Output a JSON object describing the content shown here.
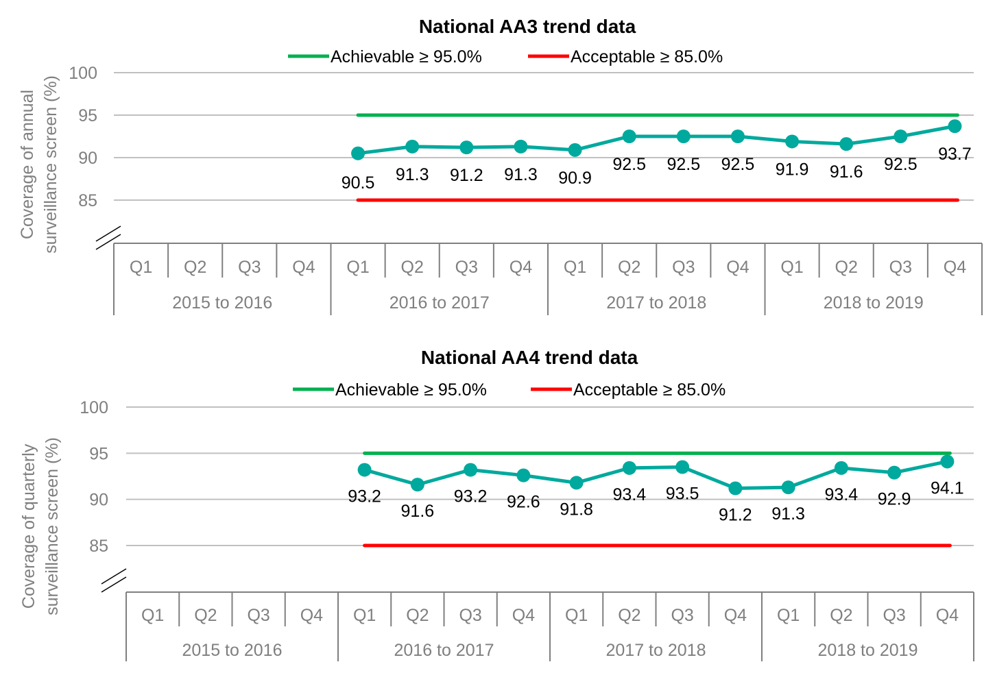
{
  "chart_data": [
    {
      "type": "line",
      "title": "National AA3 trend data",
      "ylabel": "Coverage of annual surveillance screen (%)",
      "ylabel_lines": [
        "Coverage of annual",
        "surveillance screen (%)"
      ],
      "ylim": [
        85,
        100
      ],
      "yticks": [
        "85",
        "90",
        "95",
        "100"
      ],
      "y_axis_break": true,
      "grid": true,
      "legend_position": "top",
      "quarters": [
        "Q1",
        "Q2",
        "Q3",
        "Q4",
        "Q1",
        "Q2",
        "Q3",
        "Q4",
        "Q1",
        "Q2",
        "Q3",
        "Q4",
        "Q1",
        "Q2",
        "Q3",
        "Q4"
      ],
      "years": [
        "2015 to 2016",
        "2016 to 2017",
        "2017 to 2018",
        "2018 to 2019"
      ],
      "series": [
        {
          "values": [
            null,
            null,
            null,
            null,
            90.5,
            91.3,
            91.2,
            91.3,
            90.9,
            92.5,
            92.5,
            92.5,
            91.9,
            91.6,
            92.5,
            93.7
          ],
          "data_labels": [
            "",
            "",
            "",
            "",
            "90.5",
            "91.3",
            "91.2",
            "91.3",
            "90.9",
            "92.5",
            "92.5",
            "92.5",
            "91.9",
            "91.6",
            "92.5",
            "93.7"
          ],
          "color": "#00A99D"
        }
      ],
      "thresholds": [
        {
          "name": "Acceptable ≥ 85.0%",
          "value": 85,
          "color": "#FF0000"
        },
        {
          "name": "Achievable ≥ 95.0%",
          "value": 95,
          "color": "#00B050"
        }
      ]
    },
    {
      "type": "line",
      "title": "National AA4 trend data",
      "ylabel": "Coverage of quarterly surveillance screen (%)",
      "ylabel_lines": [
        "Coverage of quarterly",
        "surveillance screen (%)"
      ],
      "ylim": [
        85,
        100
      ],
      "yticks": [
        "85",
        "90",
        "95",
        "100"
      ],
      "y_axis_break": true,
      "grid": true,
      "legend_position": "top",
      "quarters": [
        "Q1",
        "Q2",
        "Q3",
        "Q4",
        "Q1",
        "Q2",
        "Q3",
        "Q4",
        "Q1",
        "Q2",
        "Q3",
        "Q4",
        "Q1",
        "Q2",
        "Q3",
        "Q4"
      ],
      "years": [
        "2015 to 2016",
        "2016 to 2017",
        "2017 to 2018",
        "2018 to 2019"
      ],
      "series": [
        {
          "values": [
            null,
            null,
            null,
            null,
            93.2,
            91.6,
            93.2,
            92.6,
            91.8,
            93.4,
            93.5,
            91.2,
            91.3,
            93.4,
            92.9,
            94.1
          ],
          "data_labels": [
            "",
            "",
            "",
            "",
            "93.2",
            "91.6",
            "93.2",
            "92.6",
            "91.8",
            "93.4",
            "93.5",
            "91.2",
            "91.3",
            "93.4",
            "92.9",
            "94.1"
          ],
          "color": "#00A99D"
        }
      ],
      "thresholds": [
        {
          "name": "Acceptable ≥ 85.0%",
          "value": 85,
          "color": "#FF0000"
        },
        {
          "name": "Achievable ≥ 95.0%",
          "value": 95,
          "color": "#00B050"
        }
      ]
    }
  ]
}
